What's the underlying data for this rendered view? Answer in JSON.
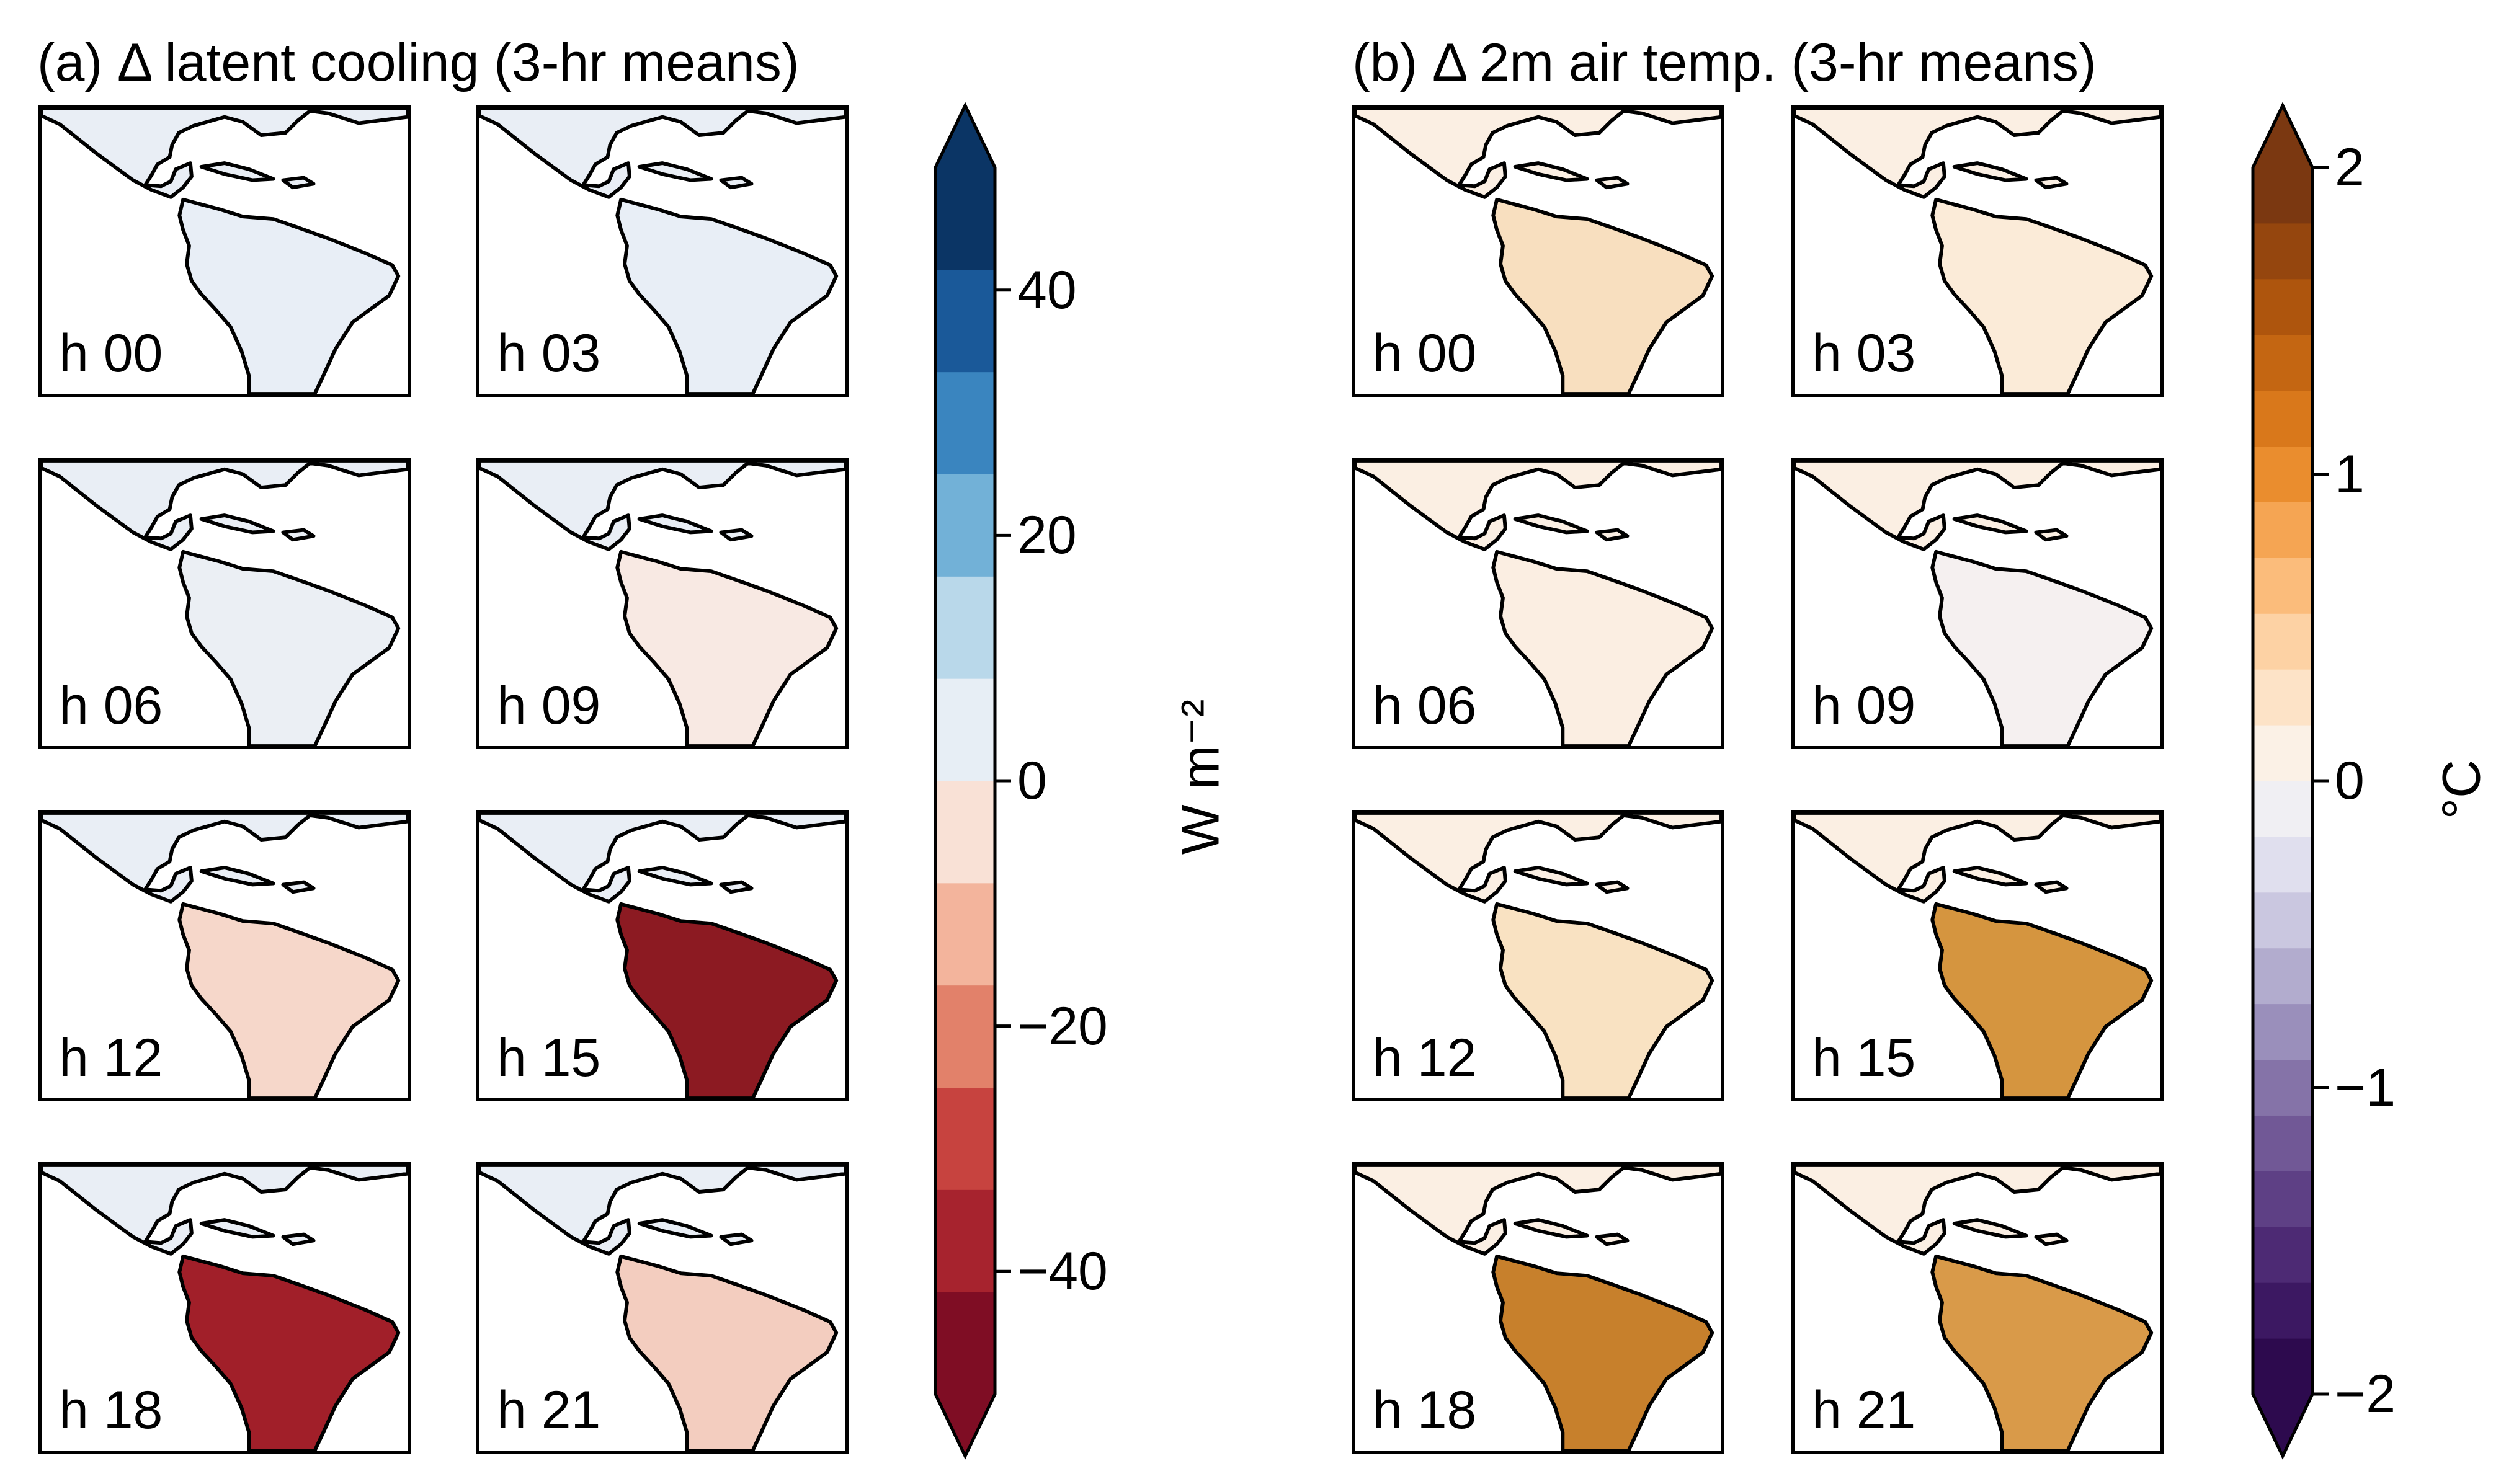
{
  "panels": [
    {
      "title": "(a) Δ latent cooling (3-hr means)",
      "hours": [
        "h 00",
        "h 03",
        "h 06",
        "h 09",
        "h 12",
        "h 15",
        "h 18",
        "h 21"
      ],
      "land_fill": [
        "#e8eef6",
        "#e8eef6",
        "#ebeff4",
        "#f8e9e3",
        "#f6d7ca",
        "#8c1a22",
        "#a11f29",
        "#f3cdbf"
      ],
      "colorbar": {
        "units": "W m⁻²",
        "ticks": [
          "40",
          "20",
          "0",
          "−20",
          "−40"
        ],
        "tick_values": [
          40,
          20,
          0,
          -20,
          -40
        ],
        "range": [
          -50,
          50
        ],
        "colors": [
          "#7f0d24",
          "#a7232e",
          "#c7433f",
          "#e2816a",
          "#f3b49c",
          "#f9e1d6",
          "#e7eef5",
          "#b9d8ea",
          "#72b1d7",
          "#3a85bf",
          "#1a5999",
          "#0b3565"
        ]
      }
    },
    {
      "title": "(b) Δ 2m air temp. (3-hr means)",
      "hours": [
        "h 00",
        "h 03",
        "h 06",
        "h 09",
        "h 12",
        "h 15",
        "h 18",
        "h 21"
      ],
      "land_fill": [
        "#f8dfbf",
        "#fbebd8",
        "#fbeee2",
        "#f5f0f0",
        "#f9e2c2",
        "#d5953f",
        "#c7802c",
        "#d99a49"
      ],
      "colorbar": {
        "units": "°C",
        "ticks": [
          "2",
          "1",
          "0",
          "−1",
          "−2"
        ],
        "tick_values": [
          2,
          1,
          0,
          -1,
          -2
        ],
        "range": [
          -2,
          2
        ],
        "colors": [
          "#2d0a4e",
          "#3c1862",
          "#4d2a74",
          "#5e4085",
          "#715896",
          "#8573a8",
          "#9a8fbb",
          "#b2acce",
          "#cac7e0",
          "#e0dfee",
          "#f0eff3",
          "#fbf1e6",
          "#fde3c7",
          "#fdd2a4",
          "#fbbc7b",
          "#f5a553",
          "#ea8d2e",
          "#d9781b",
          "#c46612",
          "#ae550d",
          "#95460e",
          "#7b3811"
        ]
      }
    }
  ],
  "colors": {
    "coast": "#000000",
    "ocean": "#ffffff"
  }
}
